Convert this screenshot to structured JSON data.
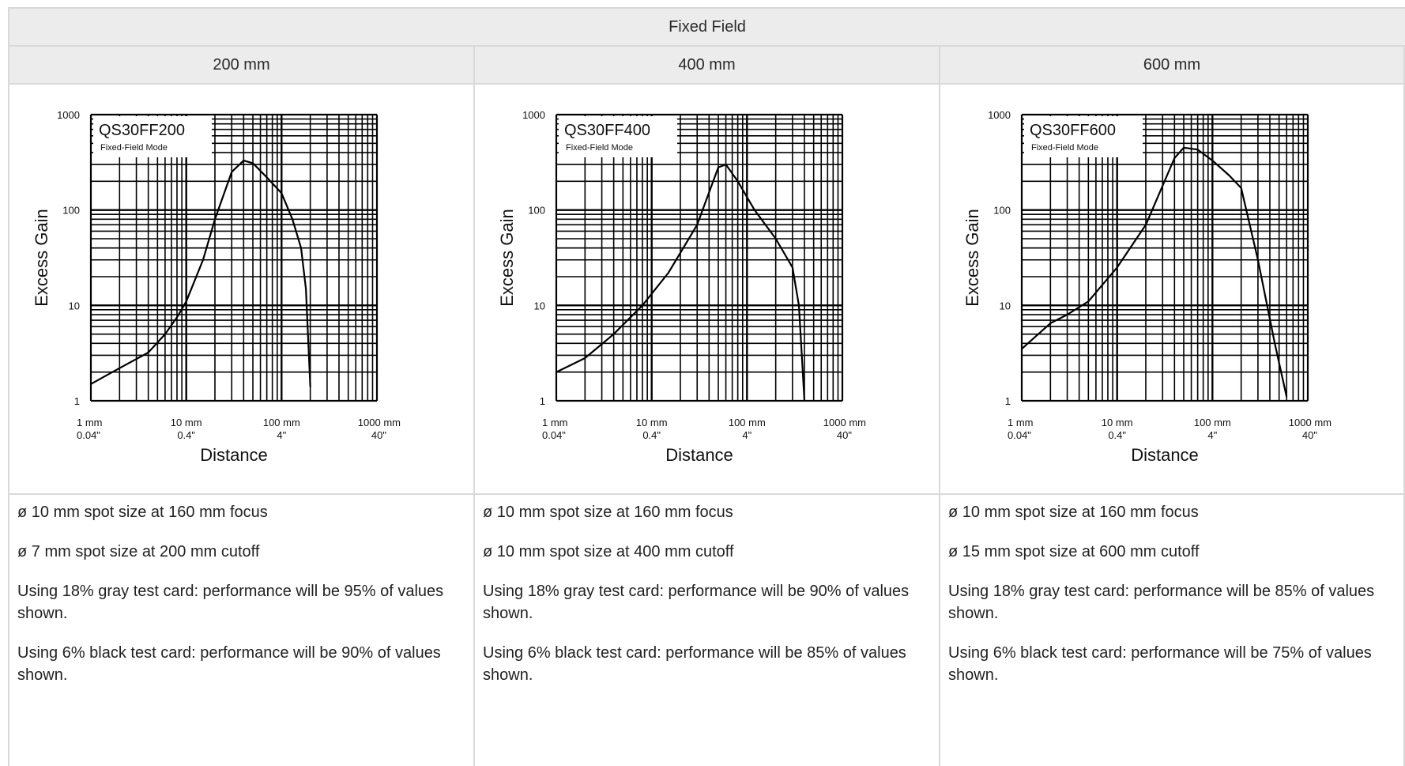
{
  "table": {
    "title": "Fixed Field",
    "columns": [
      "200 mm",
      "400 mm",
      "600 mm"
    ],
    "notes": [
      [
        "ø 10 mm spot size at 160 mm focus",
        "ø 7 mm spot size at 200 mm cutoff",
        "Using 18% gray test card: performance will be 95% of values shown.",
        "Using 6% black test card: performance will be 90% of values shown."
      ],
      [
        "ø 10 mm spot size at 160 mm focus",
        "ø 10 mm spot size at 400 mm cutoff",
        "Using 18% gray test card: performance will be 90% of values shown.",
        "Using 6% black test card: performance will be 85% of values shown."
      ],
      [
        "ø 10 mm spot size at 160 mm focus",
        "ø 15 mm spot size at 600 mm cutoff",
        "Using 18% gray test card: performance will be 85% of values shown.",
        "Using 6% black test card: performance will be 75% of values shown."
      ]
    ]
  },
  "chart_data": [
    {
      "type": "line",
      "model": "QS30FF200",
      "mode": "Fixed-Field Mode",
      "xlabel": "Distance",
      "ylabel": "Excess Gain",
      "xscale": "log",
      "yscale": "log",
      "xlim": [
        1,
        1000
      ],
      "ylim": [
        1,
        1000
      ],
      "xticks_mm": [
        "1 mm",
        "10 mm",
        "100 mm",
        "1000 mm"
      ],
      "xticks_in": [
        "0.04\"",
        "0.4\"",
        "4\"",
        "40\""
      ],
      "yticks": [
        "1",
        "10",
        "100",
        "1000"
      ],
      "grid": true,
      "x": [
        1,
        2,
        4,
        6,
        8,
        10,
        15,
        20,
        30,
        40,
        50,
        70,
        100,
        130,
        160,
        180,
        200
      ],
      "y": [
        1.5,
        2.2,
        3.2,
        5,
        7.5,
        11,
        30,
        80,
        250,
        330,
        310,
        220,
        150,
        80,
        40,
        15,
        1.4
      ]
    },
    {
      "type": "line",
      "model": "QS30FF400",
      "mode": "Fixed-Field Mode",
      "xlabel": "Distance",
      "ylabel": "Excess Gain",
      "xscale": "log",
      "yscale": "log",
      "xlim": [
        1,
        1000
      ],
      "ylim": [
        1,
        1000
      ],
      "xticks_mm": [
        "1 mm",
        "10 mm",
        "100 mm",
        "1000 mm"
      ],
      "xticks_in": [
        "0.04\"",
        "0.4\"",
        "4\"",
        "40\""
      ],
      "yticks": [
        "1",
        "10",
        "100",
        "1000"
      ],
      "grid": true,
      "x": [
        1,
        2,
        4,
        8,
        15,
        30,
        50,
        60,
        80,
        120,
        200,
        300,
        350,
        400
      ],
      "y": [
        2,
        2.8,
        5,
        10,
        22,
        70,
        280,
        300,
        200,
        100,
        50,
        25,
        10,
        1
      ]
    },
    {
      "type": "line",
      "model": "QS30FF600",
      "mode": "Fixed-Field Mode",
      "xlabel": "Distance",
      "ylabel": "Excess Gain",
      "xscale": "log",
      "yscale": "log",
      "xlim": [
        1,
        1000
      ],
      "ylim": [
        1,
        1000
      ],
      "xticks_mm": [
        "1 mm",
        "10 mm",
        "100 mm",
        "1000 mm"
      ],
      "xticks_in": [
        "0.04\"",
        "0.4\"",
        "4\"",
        "40\""
      ],
      "yticks": [
        "1",
        "10",
        "100",
        "1000"
      ],
      "grid": true,
      "x": [
        1,
        2,
        3,
        5,
        10,
        20,
        40,
        50,
        70,
        100,
        150,
        200,
        300,
        450,
        600
      ],
      "y": [
        3.5,
        6.5,
        8,
        11,
        25,
        70,
        350,
        450,
        430,
        330,
        230,
        170,
        30,
        4,
        1.1
      ]
    }
  ]
}
